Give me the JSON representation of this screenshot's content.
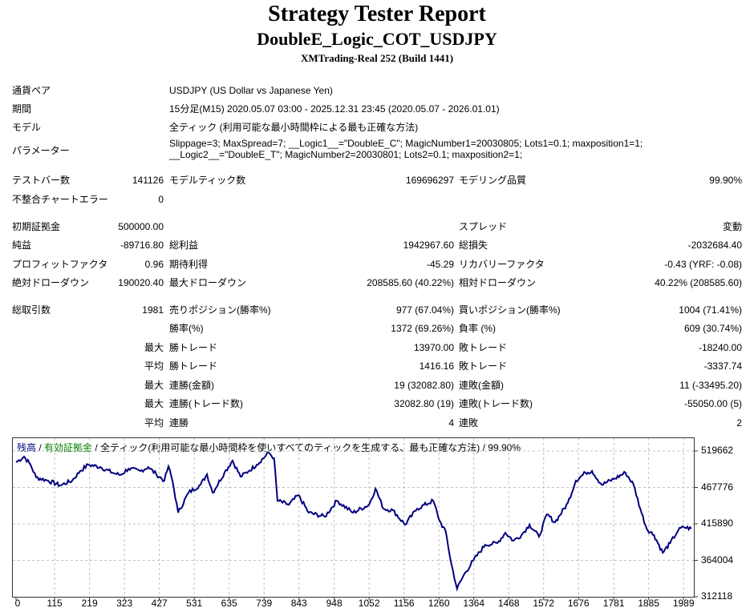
{
  "header": {
    "title": "Strategy Tester Report",
    "subtitle": "DoubleE_Logic_COT_USDJPY",
    "build": "XMTrading-Real 252 (Build 1441)"
  },
  "info": [
    {
      "label": "通貨ペア",
      "value": "USDJPY (US Dollar vs Japanese Yen)"
    },
    {
      "label": "期間",
      "value": "15分足(M15) 2020.05.07 03:00 - 2025.12.31 23:45 (2020.05.07 - 2026.01.01)"
    },
    {
      "label": "モデル",
      "value": "全ティック (利用可能な最小時間枠による最も正確な方法)"
    },
    {
      "label": "パラメーター",
      "value": "Slippage=3; MaxSpread=7; __Logic1__=\"DoubleE_C\"; MagicNumber1=20030805; Lots1=0.1; maxposition1=1;",
      "value2": "__Logic2__=\"DoubleE_T\"; MagicNumber2=20030801; Lots2=0.1; maxposition2=1;"
    }
  ],
  "stats": [
    [
      "テストバー数",
      "141126",
      "モデルティック数",
      "169696297",
      "モデリング品質",
      "99.90%"
    ],
    [
      "不整合チャートエラー",
      "0",
      "",
      "",
      "",
      ""
    ],
    [
      "初期証拠金",
      "500000.00",
      "",
      "",
      "スプレッド",
      "変動"
    ],
    [
      "純益",
      "-89716.80",
      "総利益",
      "1942967.60",
      "総損失",
      "-2032684.40"
    ],
    [
      "プロフィットファクタ",
      "0.96",
      "期待利得",
      "-45.29",
      "リカバリーファクタ",
      "-0.43 (YRF: -0.08)"
    ],
    [
      "絶対ドローダウン",
      "190020.40",
      "最大ドローダウン",
      "208585.60 (40.22%)",
      "相対ドローダウン",
      "40.22% (208585.60)"
    ],
    [
      "総取引数",
      "1981",
      "売りポジション(勝率%)",
      "977 (67.04%)",
      "買いポジション(勝率%)",
      "1004 (71.41%)"
    ],
    [
      "",
      "",
      "勝率(%)",
      "1372 (69.26%)",
      "負率 (%)",
      "609 (30.74%)"
    ],
    [
      "",
      "最大",
      "勝トレード",
      "13970.00",
      "敗トレード",
      "-18240.00"
    ],
    [
      "",
      "平均",
      "勝トレード",
      "1416.16",
      "敗トレード",
      "-3337.74"
    ],
    [
      "",
      "最大",
      "連勝(金額)",
      "19 (32082.80)",
      "連敗(金額)",
      "11 (-33495.20)"
    ],
    [
      "",
      "最大",
      "連勝(トレード数)",
      "32082.80 (19)",
      "連敗(トレード数)",
      "-55050.00 (5)"
    ],
    [
      "",
      "平均",
      "連勝",
      "4",
      "連敗",
      "2"
    ]
  ],
  "chart_data": {
    "type": "line",
    "legend": {
      "balance": "残高",
      "sep1": " / ",
      "equity": "有効証拠金",
      "rest": " / 全ティック(利用可能な最小時間枠を使いすべてのティックを生成する、最も正確な方法) / 99.90%"
    },
    "colors": {
      "balance": "#00007f",
      "equity": "#008000",
      "grid": "#c0c0c0"
    },
    "grid": true,
    "xlim": [
      0,
      2022
    ],
    "ylim": [
      312118,
      537800
    ],
    "x_ticks": [
      "0",
      "115",
      "219",
      "323",
      "427",
      "531",
      "635",
      "739",
      "843",
      "948",
      "1052",
      "1156",
      "1260",
      "1364",
      "1468",
      "1572",
      "1676",
      "1781",
      "1885",
      "1989"
    ],
    "y_ticks": [
      "519662",
      "467776",
      "415890",
      "364004",
      "312118"
    ],
    "series": [
      {
        "points": [
          [
            0,
            503600
          ],
          [
            24,
            511600
          ],
          [
            43,
            500200
          ],
          [
            60,
            482000
          ],
          [
            96,
            477400
          ],
          [
            131,
            470600
          ],
          [
            167,
            477400
          ],
          [
            191,
            491100
          ],
          [
            215,
            500200
          ],
          [
            251,
            496800
          ],
          [
            287,
            488800
          ],
          [
            311,
            485400
          ],
          [
            335,
            494500
          ],
          [
            370,
            491100
          ],
          [
            394,
            496800
          ],
          [
            418,
            486500
          ],
          [
            442,
            477400
          ],
          [
            454,
            497900
          ],
          [
            466,
            477400
          ],
          [
            483,
            431800
          ],
          [
            514,
            460300
          ],
          [
            550,
            471700
          ],
          [
            569,
            486500
          ],
          [
            586,
            460300
          ],
          [
            621,
            488800
          ],
          [
            645,
            505900
          ],
          [
            669,
            483100
          ],
          [
            693,
            491100
          ],
          [
            717,
            500200
          ],
          [
            753,
            517300
          ],
          [
            769,
            509300
          ],
          [
            779,
            448900
          ],
          [
            813,
            443200
          ],
          [
            841,
            456900
          ],
          [
            872,
            431800
          ],
          [
            920,
            426100
          ],
          [
            956,
            448900
          ],
          [
            1004,
            431800
          ],
          [
            1052,
            443200
          ],
          [
            1071,
            466000
          ],
          [
            1095,
            437500
          ],
          [
            1123,
            435200
          ],
          [
            1159,
            414700
          ],
          [
            1195,
            437500
          ],
          [
            1243,
            448900
          ],
          [
            1262,
            420400
          ],
          [
            1281,
            403300
          ],
          [
            1295,
            363400
          ],
          [
            1314,
            323500
          ],
          [
            1334,
            342900
          ],
          [
            1362,
            363400
          ],
          [
            1398,
            386200
          ],
          [
            1434,
            388500
          ],
          [
            1458,
            403300
          ],
          [
            1482,
            391900
          ],
          [
            1506,
            399900
          ],
          [
            1530,
            414700
          ],
          [
            1558,
            397600
          ],
          [
            1582,
            429500
          ],
          [
            1606,
            418100
          ],
          [
            1644,
            445500
          ],
          [
            1668,
            477400
          ],
          [
            1697,
            488800
          ],
          [
            1716,
            491100
          ],
          [
            1745,
            471700
          ],
          [
            1781,
            479700
          ],
          [
            1816,
            488800
          ],
          [
            1840,
            471700
          ],
          [
            1860,
            437500
          ],
          [
            1879,
            409000
          ],
          [
            1901,
            399900
          ],
          [
            1927,
            374800
          ],
          [
            1949,
            388500
          ],
          [
            1973,
            406700
          ],
          [
            1989,
            411300
          ],
          [
            2012,
            409000
          ]
        ]
      }
    ]
  }
}
